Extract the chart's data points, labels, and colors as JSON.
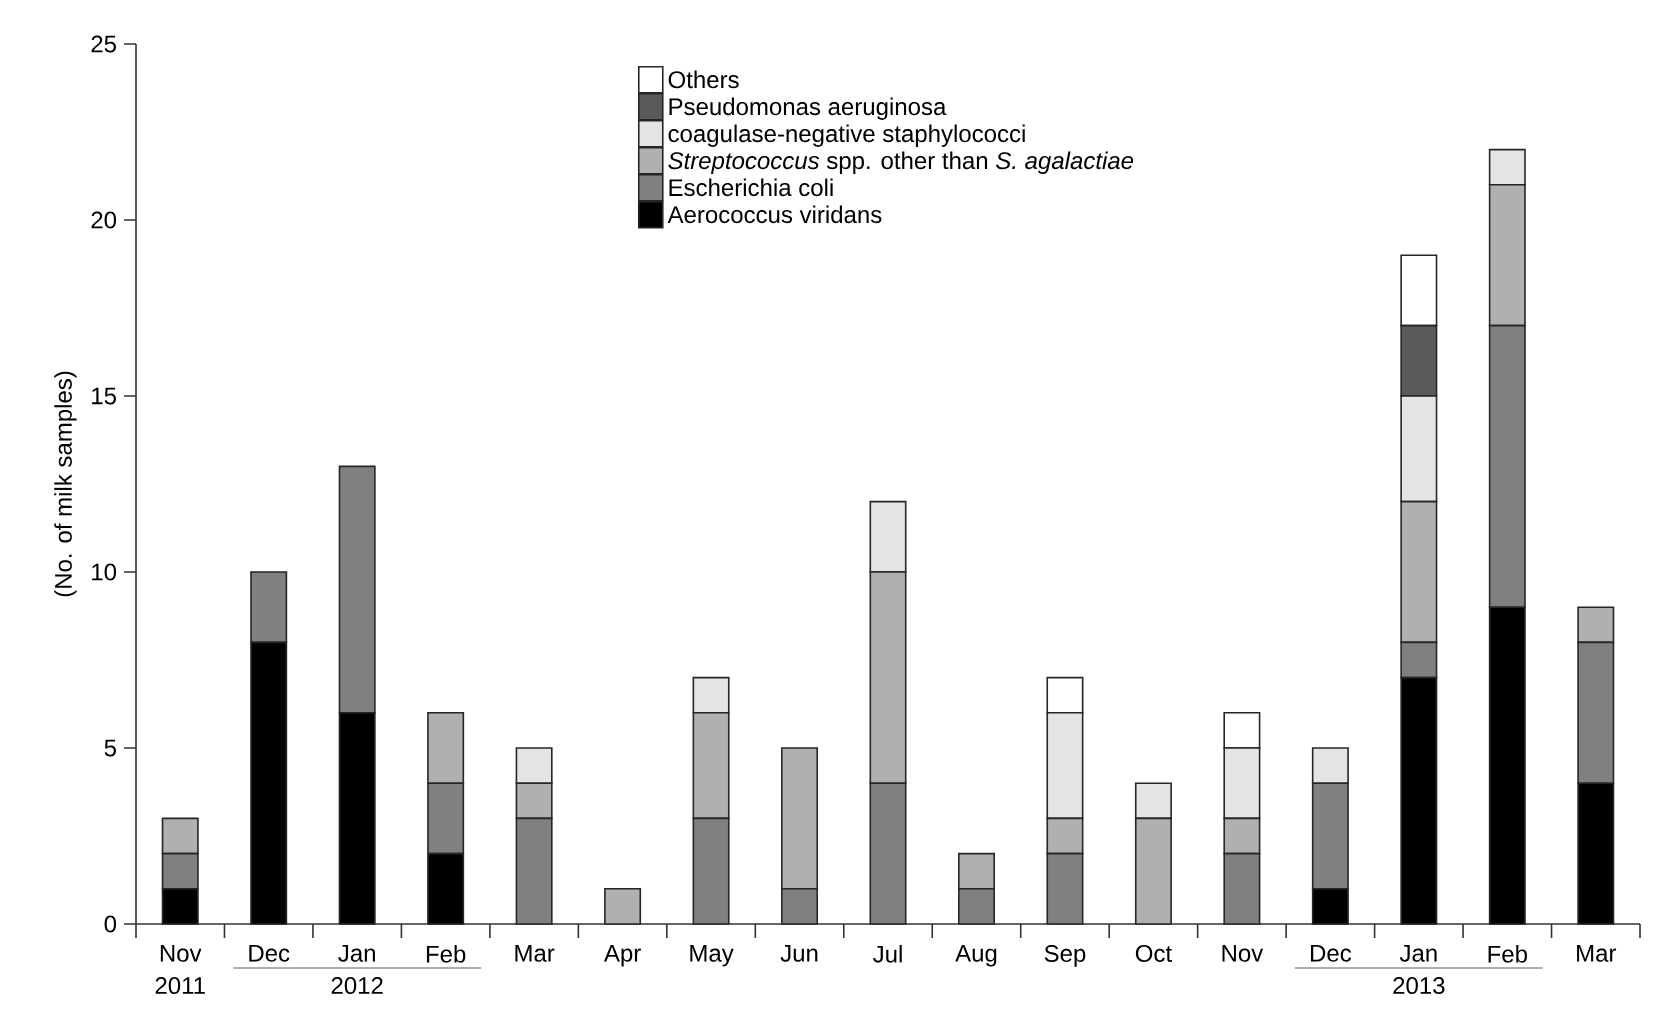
{
  "chart_data": {
    "type": "bar",
    "stacked": true,
    "ylabel": "(No. of milk samples)",
    "categories": [
      "Nov",
      "Dec",
      "Jan",
      "Feb",
      "Mar",
      "Apr",
      "May",
      "Jun",
      "Jul",
      "Aug",
      "Sep",
      "Oct",
      "Nov",
      "Dec",
      "Jan",
      "Feb",
      "Mar"
    ],
    "series": [
      {
        "name": "Aerococcus viridans",
        "color": "#000000",
        "values": [
          1,
          8,
          6,
          2,
          0,
          0,
          0,
          0,
          0,
          0,
          0,
          0,
          0,
          1,
          7,
          9,
          4
        ]
      },
      {
        "name": "Escherichia coli",
        "color": "#808080",
        "values": [
          1,
          2,
          7,
          2,
          3,
          0,
          3,
          1,
          4,
          1,
          2,
          0,
          2,
          3,
          1,
          8,
          4
        ]
      },
      {
        "name": "*Streptococcus* spp. other than *S. agalactiae*",
        "color": "#b0b0b0",
        "values": [
          1,
          0,
          0,
          2,
          1,
          1,
          3,
          4,
          6,
          1,
          1,
          3,
          1,
          0,
          4,
          4,
          1
        ]
      },
      {
        "name": "coagulase-negative staphylococci",
        "color": "#e4e4e4",
        "values": [
          0,
          0,
          0,
          0,
          1,
          0,
          1,
          0,
          2,
          0,
          3,
          1,
          2,
          1,
          3,
          1,
          0
        ]
      },
      {
        "name": "Pseudomonas aeruginosa",
        "color": "#5a5a5a",
        "values": [
          0,
          0,
          0,
          0,
          0,
          0,
          0,
          0,
          0,
          0,
          0,
          0,
          0,
          0,
          2,
          0,
          0
        ]
      },
      {
        "name": "Others",
        "color": "#ffffff",
        "values": [
          0,
          0,
          0,
          0,
          0,
          0,
          0,
          0,
          0,
          0,
          1,
          0,
          1,
          0,
          2,
          0,
          0
        ]
      }
    ],
    "annotations": [
      "2011",
      "2012",
      "2013"
    ],
    "ylim": [
      0,
      25
    ],
    "yticks": [
      0,
      5,
      10,
      15,
      20,
      25
    ],
    "grid": false,
    "legend": "top"
  }
}
